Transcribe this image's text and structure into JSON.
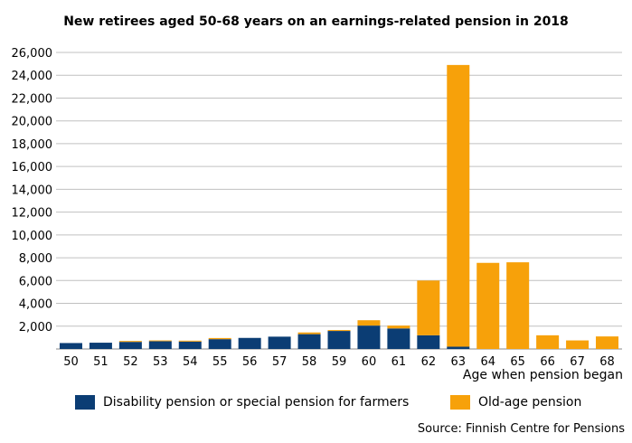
{
  "colors": {
    "disability": "#0b3d74",
    "old_age": "#f7a10a",
    "grid": "#c0c0c0",
    "axis": "#888888"
  },
  "chart_data": {
    "type": "bar",
    "stacked": true,
    "title": "New retirees aged 50-68 years on an earnings-related pension in 2018",
    "xlabel": "Age when pension began",
    "ylabel": "",
    "ylim": [
      0,
      26000
    ],
    "yticks": [
      "",
      "2,000",
      "4,000",
      "6,000",
      "8,000",
      "10,000",
      "12,000",
      "14,000",
      "16,000",
      "18,000",
      "20,000",
      "22,000",
      "24,000",
      "26,000"
    ],
    "categories": [
      "50",
      "51",
      "52",
      "53",
      "54",
      "55",
      "56",
      "57",
      "58",
      "59",
      "60",
      "61",
      "62",
      "63",
      "64",
      "65",
      "66",
      "67",
      "68"
    ],
    "grid": true,
    "legend_position": "bottom",
    "series": [
      {
        "name": "Disability pension or special pension for farmers",
        "color_key": "disability",
        "values": [
          520,
          550,
          620,
          680,
          650,
          860,
          970,
          1080,
          1300,
          1580,
          2050,
          1800,
          1200,
          200,
          0,
          0,
          0,
          0,
          0
        ]
      },
      {
        "name": "Old-age pension",
        "color_key": "old_age",
        "values": [
          0,
          0,
          80,
          70,
          80,
          100,
          0,
          0,
          150,
          80,
          470,
          250,
          4800,
          24700,
          7550,
          7600,
          1200,
          750,
          1100
        ]
      }
    ],
    "source": "Source: Finnish Centre for Pensions"
  }
}
